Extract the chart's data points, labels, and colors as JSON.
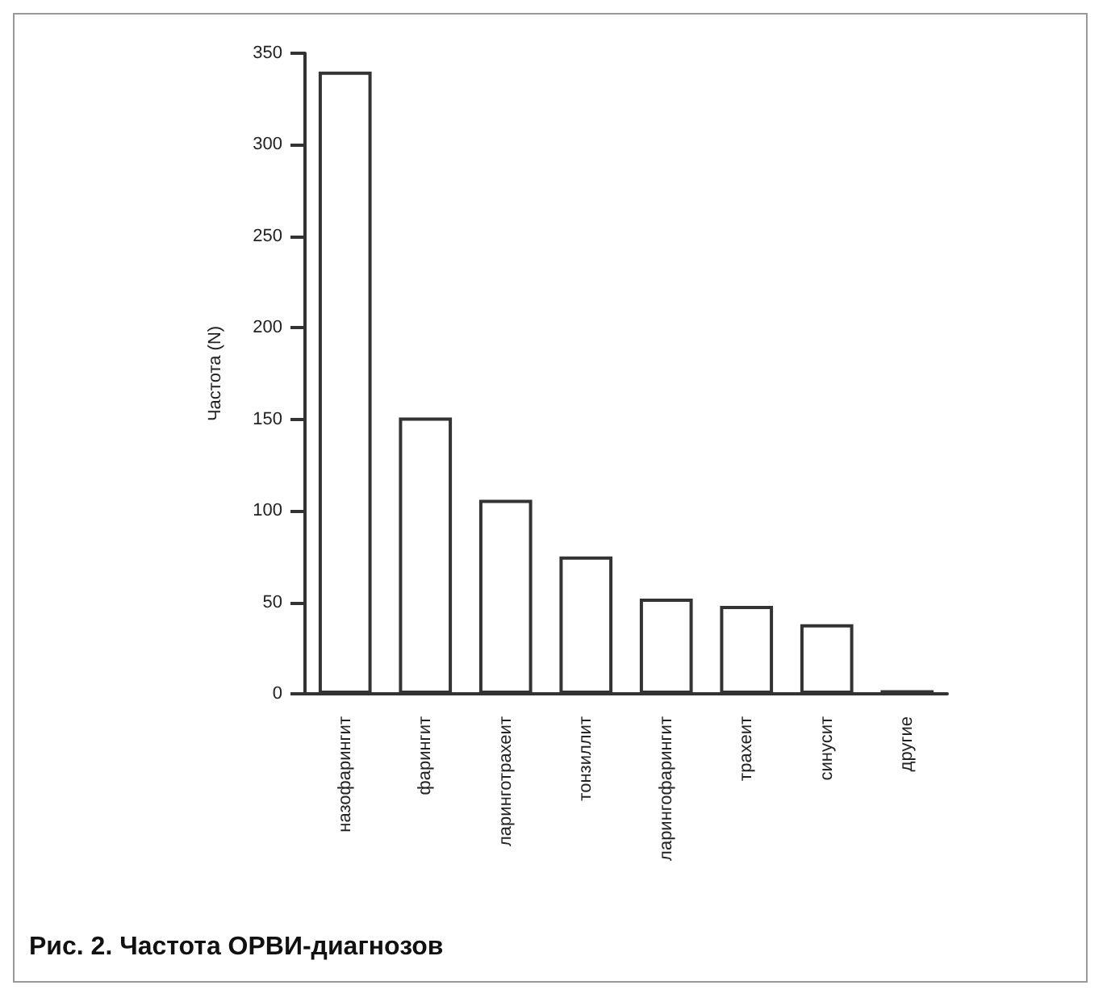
{
  "chart_data": {
    "type": "bar",
    "title": "Рис. 2. Частота ОРВИ-диагнозов",
    "ylabel": "Частота (N)",
    "categories": [
      "назофарингит",
      "фарингит",
      "ларинготрахеит",
      "тонзиллит",
      "ларингофарингит",
      "трахеит",
      "синусит",
      "другие"
    ],
    "values": [
      340,
      151,
      106,
      75,
      52,
      48,
      38,
      2
    ],
    "color": "#ffffff",
    "ylim": [
      0,
      350
    ],
    "yticks": [
      0,
      50,
      100,
      150,
      200,
      250,
      300,
      350
    ],
    "grid": false
  }
}
